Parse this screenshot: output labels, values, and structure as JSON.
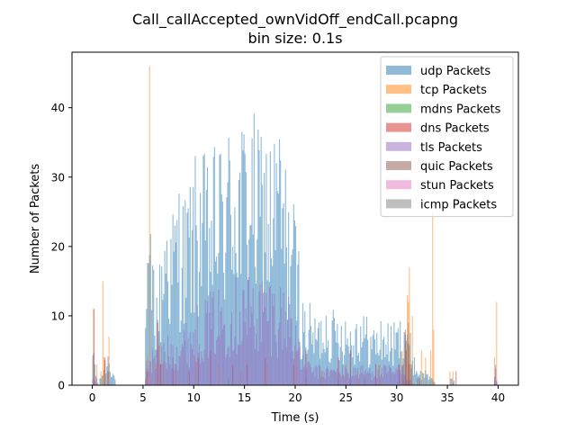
{
  "chart_data": {
    "type": "bar",
    "title": "Call_callAccepted_ownVidOff_endCall.pcapng",
    "subtitle": "bin size: 0.1s",
    "xlabel": "Time (s)",
    "ylabel": "Number of Packets",
    "xlim": [
      -2,
      42
    ],
    "ylim": [
      0,
      48
    ],
    "bin_size": 0.1,
    "x_ticks": [
      0,
      5,
      10,
      15,
      20,
      25,
      30,
      35,
      40
    ],
    "y_ticks": [
      0,
      10,
      20,
      30,
      40
    ],
    "grid": false,
    "legend_position": "upper right",
    "series": [
      {
        "name": "udp Packets",
        "color": "#1f77b4",
        "opacity": 0.5,
        "envelope": [
          [
            0,
            0
          ],
          [
            0.1,
            9
          ],
          [
            0.3,
            3
          ],
          [
            0.6,
            0
          ],
          [
            1.2,
            4
          ],
          [
            1.6,
            6
          ],
          [
            2.0,
            3
          ],
          [
            2.4,
            0
          ],
          [
            5.2,
            0
          ],
          [
            5.3,
            17
          ],
          [
            5.8,
            23
          ],
          [
            6.3,
            15
          ],
          [
            6.8,
            20
          ],
          [
            7.2,
            30
          ],
          [
            7.8,
            25
          ],
          [
            8.5,
            31
          ],
          [
            9.2,
            28
          ],
          [
            10.0,
            33
          ],
          [
            10.7,
            35
          ],
          [
            11.5,
            32
          ],
          [
            12.3,
            36
          ],
          [
            13.1,
            37
          ],
          [
            13.9,
            41
          ],
          [
            14.7,
            39
          ],
          [
            15.5,
            43
          ],
          [
            16.3,
            37
          ],
          [
            17.0,
            40
          ],
          [
            17.6,
            36
          ],
          [
            18.3,
            41
          ],
          [
            19.0,
            33
          ],
          [
            19.6,
            30
          ],
          [
            20.3,
            23
          ],
          [
            20.6,
            13
          ],
          [
            21.4,
            12
          ],
          [
            22.2,
            10
          ],
          [
            23.0,
            13
          ],
          [
            23.8,
            11
          ],
          [
            24.6,
            12
          ],
          [
            25.4,
            10
          ],
          [
            26.4,
            12
          ],
          [
            27.5,
            9
          ],
          [
            28.6,
            10
          ],
          [
            29.6,
            9
          ],
          [
            30.3,
            10
          ],
          [
            30.9,
            13
          ],
          [
            31.3,
            8
          ],
          [
            31.8,
            4
          ],
          [
            32.5,
            2
          ],
          [
            33.0,
            3
          ],
          [
            33.5,
            1
          ],
          [
            34.0,
            0
          ],
          [
            35.2,
            0
          ],
          [
            35.4,
            2
          ],
          [
            35.8,
            0
          ],
          [
            39.6,
            0
          ],
          [
            39.7,
            4
          ],
          [
            39.9,
            0
          ],
          [
            42,
            0
          ]
        ]
      },
      {
        "name": "tcp Packets",
        "color": "#ff7f0e",
        "opacity": 0.5,
        "spikes": [
          [
            0.1,
            11
          ],
          [
            0.4,
            3
          ],
          [
            0.8,
            2
          ],
          [
            1.0,
            15
          ],
          [
            1.1,
            4
          ],
          [
            1.6,
            7
          ],
          [
            5.4,
            4
          ],
          [
            5.6,
            46
          ],
          [
            6.2,
            3
          ],
          [
            6.6,
            6
          ],
          [
            7.0,
            3
          ],
          [
            8.2,
            2
          ],
          [
            10.1,
            4
          ],
          [
            12.4,
            3
          ],
          [
            14.6,
            2
          ],
          [
            17.2,
            3
          ],
          [
            20.1,
            5
          ],
          [
            22.5,
            2
          ],
          [
            24.9,
            3
          ],
          [
            26.1,
            2
          ],
          [
            28.3,
            3
          ],
          [
            30.5,
            5
          ],
          [
            30.8,
            6
          ],
          [
            31.0,
            13
          ],
          [
            31.1,
            12
          ],
          [
            31.2,
            17
          ],
          [
            31.5,
            10
          ],
          [
            32.4,
            5
          ],
          [
            32.8,
            4
          ],
          [
            33.3,
            5
          ],
          [
            33.5,
            25
          ],
          [
            33.6,
            8
          ],
          [
            35.2,
            2
          ],
          [
            35.5,
            2
          ],
          [
            39.6,
            4
          ],
          [
            39.8,
            12
          ]
        ]
      },
      {
        "name": "mdns Packets",
        "color": "#2ca02c",
        "opacity": 0.5,
        "spikes": [
          [
            13.4,
            1
          ],
          [
            26.8,
            1
          ]
        ]
      },
      {
        "name": "dns Packets",
        "color": "#d62728",
        "opacity": 0.5,
        "spikes": [
          [
            0.1,
            11
          ],
          [
            1.2,
            4
          ],
          [
            1.5,
            2
          ],
          [
            5.3,
            2
          ],
          [
            6.4,
            9
          ],
          [
            6.7,
            3
          ],
          [
            7.9,
            4
          ],
          [
            9.5,
            2
          ],
          [
            10.4,
            4
          ],
          [
            11.6,
            5
          ],
          [
            13.8,
            3
          ],
          [
            15.2,
            3
          ],
          [
            17.0,
            4
          ],
          [
            19.8,
            3
          ],
          [
            21.0,
            5
          ],
          [
            24.2,
            4
          ],
          [
            25.4,
            5
          ],
          [
            27.9,
            3
          ],
          [
            30.2,
            3
          ],
          [
            30.8,
            8
          ],
          [
            31.2,
            3
          ],
          [
            32.2,
            1
          ],
          [
            35.8,
            2
          ]
        ]
      },
      {
        "name": "tls Packets",
        "color": "#9467bd",
        "opacity": 0.5,
        "envelope": [
          [
            0,
            0
          ],
          [
            0.1,
            2
          ],
          [
            0.4,
            0
          ],
          [
            5.2,
            0
          ],
          [
            5.3,
            5
          ],
          [
            6.3,
            6
          ],
          [
            7.2,
            7
          ],
          [
            8.0,
            8
          ],
          [
            9.0,
            9
          ],
          [
            10.0,
            11
          ],
          [
            11.0,
            13
          ],
          [
            12.0,
            14
          ],
          [
            13.0,
            15
          ],
          [
            14.0,
            16
          ],
          [
            15.0,
            17
          ],
          [
            16.0,
            16
          ],
          [
            17.0,
            17
          ],
          [
            18.0,
            16
          ],
          [
            19.0,
            15
          ],
          [
            19.8,
            14
          ],
          [
            20.4,
            6
          ],
          [
            21.0,
            4
          ],
          [
            22.0,
            3
          ],
          [
            23.0,
            3
          ],
          [
            24.0,
            3
          ],
          [
            25.0,
            3
          ],
          [
            26.0,
            3
          ],
          [
            27.0,
            3
          ],
          [
            28.0,
            3
          ],
          [
            29.0,
            3
          ],
          [
            30.0,
            3
          ],
          [
            30.8,
            3
          ],
          [
            31.3,
            1
          ],
          [
            31.8,
            0
          ],
          [
            39.6,
            0
          ],
          [
            39.7,
            4
          ],
          [
            39.9,
            0
          ],
          [
            42,
            0
          ]
        ]
      },
      {
        "name": "quic Packets",
        "color": "#8c564b",
        "opacity": 0.5,
        "spikes": [
          [
            30.6,
            3
          ],
          [
            30.9,
            5
          ],
          [
            31.1,
            6
          ],
          [
            31.4,
            3
          ],
          [
            32.0,
            1
          ]
        ]
      },
      {
        "name": "stun Packets",
        "color": "#e377c2",
        "opacity": 0.5,
        "spikes": [
          [
            5.5,
            1
          ],
          [
            20.2,
            1
          ]
        ]
      },
      {
        "name": "icmp Packets",
        "color": "#7f7f7f",
        "opacity": 0.5,
        "spikes": []
      }
    ]
  }
}
